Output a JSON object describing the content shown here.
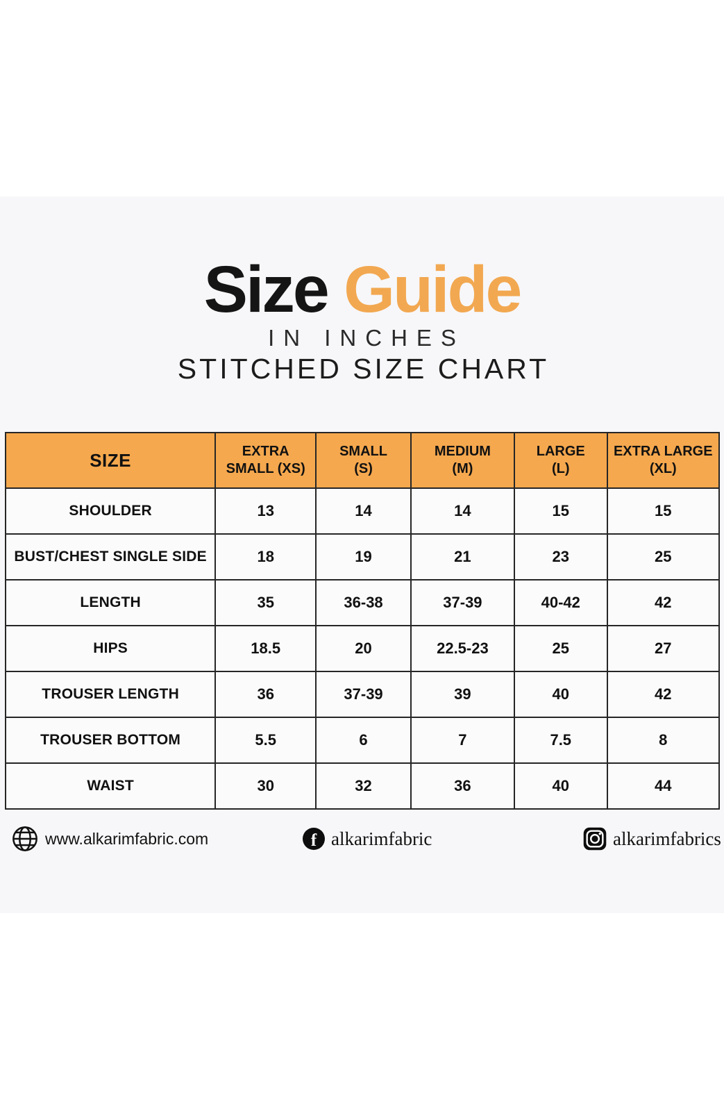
{
  "page": {
    "background_color": "#ffffff",
    "band_color": "#f7f7f9",
    "accent_color": "#f2a851",
    "header_fill_color": "#f5a84e",
    "border_color": "#262626"
  },
  "title": {
    "word_black": "Size",
    "word_orange": "Guide",
    "subtitle1": "IN INCHES",
    "subtitle2": "STITCHED SIZE CHART"
  },
  "chart_data": {
    "type": "table",
    "title": "Size Guide – Stitched Size Chart (in inches)",
    "columns": [
      "SIZE",
      "EXTRA SMALL (XS)",
      "SMALL (S)",
      "MEDIUM (M)",
      "LARGE (L)",
      "EXTRA LARGE (XL)"
    ],
    "rows": [
      [
        "SHOULDER",
        "13",
        "14",
        "14",
        "15",
        "15"
      ],
      [
        "BUST/CHEST SINGLE SIDE",
        "18",
        "19",
        "21",
        "23",
        "25"
      ],
      [
        "LENGTH",
        "35",
        "36-38",
        "37-39",
        "40-42",
        "42"
      ],
      [
        "HIPS",
        "18.5",
        "20",
        "22.5-23",
        "25",
        "27"
      ],
      [
        "TROUSER LENGTH",
        "36",
        "37-39",
        "39",
        "40",
        "42"
      ],
      [
        "TROUSER BOTTOM",
        "5.5",
        "6",
        "7",
        "7.5",
        "8"
      ],
      [
        "WAIST",
        "30",
        "32",
        "36",
        "40",
        "44"
      ]
    ]
  },
  "table": {
    "header": [
      {
        "line1": "SIZE",
        "line2": ""
      },
      {
        "line1": "EXTRA",
        "line2": "SMALL (XS)"
      },
      {
        "line1": "SMALL",
        "line2": "(S)"
      },
      {
        "line1": "MEDIUM",
        "line2": "(M)"
      },
      {
        "line1": "LARGE",
        "line2": "(L)"
      },
      {
        "line1": "EXTRA LARGE",
        "line2": "(XL)"
      }
    ],
    "col_widths_pct": [
      29.4,
      14.1,
      13.3,
      14.5,
      13.0,
      15.7
    ],
    "rows": [
      {
        "label": "SHOULDER",
        "values": [
          "13",
          "14",
          "14",
          "15",
          "15"
        ]
      },
      {
        "label": "BUST/CHEST SINGLE SIDE",
        "values": [
          "18",
          "19",
          "21",
          "23",
          "25"
        ]
      },
      {
        "label": "LENGTH",
        "values": [
          "35",
          "36-38",
          "37-39",
          "40-42",
          "42"
        ]
      },
      {
        "label": "HIPS",
        "values": [
          "18.5",
          "20",
          "22.5-23",
          "25",
          "27"
        ]
      },
      {
        "label": "TROUSER LENGTH",
        "values": [
          "36",
          "37-39",
          "39",
          "40",
          "42"
        ]
      },
      {
        "label": "TROUSER BOTTOM",
        "values": [
          "5.5",
          "6",
          "7",
          "7.5",
          "8"
        ]
      },
      {
        "label": "WAIST",
        "values": [
          "30",
          "32",
          "36",
          "40",
          "44"
        ]
      }
    ]
  },
  "footer": {
    "website": {
      "icon": "globe-icon",
      "label": "www.alkarimfabric.com"
    },
    "facebook": {
      "icon": "facebook-icon",
      "glyph": "f",
      "label": "alkarimfabric"
    },
    "instagram": {
      "icon": "instagram-icon",
      "label": "alkarimfabrics"
    }
  }
}
